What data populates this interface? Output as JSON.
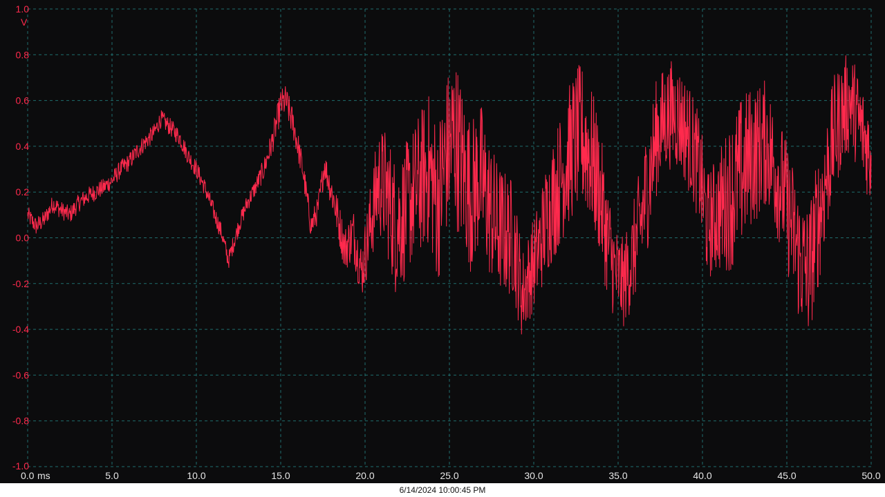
{
  "chart_data": {
    "type": "line",
    "title": "",
    "xlabel": "ms",
    "ylabel": "V",
    "xlim": [
      0,
      50
    ],
    "ylim": [
      -1,
      1
    ],
    "grid": true,
    "x_ticks": [
      "0.0",
      "5.0",
      "10.0",
      "15.0",
      "20.0",
      "25.0",
      "30.0",
      "35.0",
      "40.0",
      "45.0",
      "50.0"
    ],
    "y_ticks": [
      "1.0",
      "0.8",
      "0.6",
      "0.4",
      "0.2",
      "0.0",
      "-0.2",
      "-0.4",
      "-0.6",
      "-0.8",
      "-1.0"
    ],
    "x_unit": "ms",
    "y_unit": "V",
    "series": [
      {
        "color": "#ff2a4d",
        "x": [
          0,
          0.5,
          1,
          1.5,
          2,
          2.5,
          3,
          3.5,
          4,
          4.5,
          5,
          5.5,
          6,
          6.5,
          7,
          7.5,
          7.9,
          8.5,
          9,
          9.5,
          10,
          10.5,
          11,
          11.5,
          11.9,
          12.5,
          13,
          13.5,
          14,
          14.5,
          15,
          15.3,
          15.8,
          16.3,
          16.8,
          17.2,
          17.6,
          18.2,
          18.8,
          19.3,
          19.8,
          20.3,
          20.8,
          21.3,
          21.8,
          22.3,
          22.8,
          23.3,
          23.8,
          24.3,
          24.8,
          25.3,
          25.8,
          26.3,
          26.8,
          27.3,
          27.8,
          28.3,
          28.8,
          29.3,
          29.8,
          30.3,
          30.8,
          31.3,
          31.8,
          32.3,
          32.8,
          33.3,
          33.8,
          34.3,
          34.8,
          35.3,
          35.8,
          36.3,
          36.8,
          37.3,
          37.8,
          38.3,
          38.8,
          39.3,
          39.8,
          40.3,
          40.8,
          41.3,
          41.8,
          42.3,
          42.8,
          43.3,
          43.8,
          44.3,
          44.8,
          45.3,
          45.8,
          46.3,
          46.8,
          47.3,
          47.8,
          48.3,
          48.8,
          49.3,
          50
        ],
        "y": [
          0.1,
          0.05,
          0.08,
          0.15,
          0.12,
          0.1,
          0.15,
          0.18,
          0.2,
          0.22,
          0.25,
          0.3,
          0.33,
          0.38,
          0.42,
          0.46,
          0.52,
          0.48,
          0.44,
          0.36,
          0.3,
          0.22,
          0.12,
          0.02,
          -0.1,
          0.05,
          0.15,
          0.22,
          0.3,
          0.42,
          0.58,
          0.6,
          0.48,
          0.3,
          0.05,
          0.12,
          0.32,
          0.15,
          -0.05,
          0.02,
          -0.15,
          0.05,
          0.25,
          0.2,
          0.05,
          0.1,
          0.18,
          0.25,
          0.3,
          0.15,
          0.35,
          0.45,
          0.3,
          0.18,
          0.28,
          0.15,
          0.05,
          0.02,
          0.0,
          -0.25,
          -0.15,
          -0.05,
          0.1,
          0.2,
          0.3,
          0.4,
          0.45,
          0.38,
          0.25,
          0.02,
          -0.15,
          -0.2,
          -0.1,
          0.05,
          0.25,
          0.45,
          0.52,
          0.55,
          0.5,
          0.42,
          0.3,
          0.05,
          0.1,
          0.15,
          0.2,
          0.28,
          0.35,
          0.38,
          0.42,
          0.3,
          0.2,
          0.05,
          -0.1,
          -0.15,
          0.05,
          0.25,
          0.45,
          0.55,
          0.6,
          0.5,
          0.35
        ],
        "noise_amplitude": [
          0.04,
          0.04,
          0.04,
          0.04,
          0.04,
          0.04,
          0.04,
          0.04,
          0.04,
          0.04,
          0.04,
          0.04,
          0.04,
          0.04,
          0.04,
          0.04,
          0.04,
          0.04,
          0.04,
          0.04,
          0.04,
          0.04,
          0.04,
          0.04,
          0.04,
          0.04,
          0.04,
          0.04,
          0.05,
          0.06,
          0.07,
          0.07,
          0.07,
          0.06,
          0.06,
          0.06,
          0.06,
          0.09,
          0.1,
          0.12,
          0.12,
          0.18,
          0.24,
          0.28,
          0.3,
          0.3,
          0.3,
          0.32,
          0.34,
          0.36,
          0.36,
          0.38,
          0.36,
          0.34,
          0.34,
          0.32,
          0.3,
          0.28,
          0.26,
          0.2,
          0.2,
          0.22,
          0.26,
          0.28,
          0.3,
          0.32,
          0.32,
          0.32,
          0.3,
          0.26,
          0.22,
          0.2,
          0.22,
          0.26,
          0.28,
          0.26,
          0.24,
          0.24,
          0.24,
          0.24,
          0.24,
          0.24,
          0.26,
          0.3,
          0.34,
          0.34,
          0.32,
          0.3,
          0.28,
          0.28,
          0.28,
          0.3,
          0.3,
          0.3,
          0.3,
          0.28,
          0.26,
          0.24,
          0.22,
          0.22,
          0.22
        ]
      }
    ]
  },
  "timestamp": "6/14/2024 10:00:45 PM",
  "colors": {
    "background": "#0c0c0d",
    "grid": "#1f6e6e",
    "trace": "#ff2a4d",
    "tick_label": "#ff2a4d",
    "x_tick_label": "#e6e6e6",
    "status_text": "#111111"
  }
}
